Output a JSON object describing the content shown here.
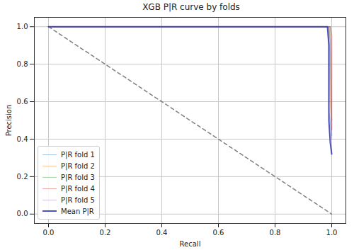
{
  "chart_data": {
    "type": "line",
    "title": "XGB P|R curve by folds",
    "x_label": "Recall",
    "y_label": "Precision",
    "xlim": [
      -0.05,
      1.05
    ],
    "ylim": [
      -0.05,
      1.05
    ],
    "xticks": [
      {
        "value": 0,
        "label": "0.0"
      },
      0.2,
      0.4,
      0.6,
      0.8,
      {
        "value": 1,
        "label": "1.0"
      }
    ],
    "yticks": [
      {
        "value": 0,
        "label": "0.0"
      },
      0.2,
      0.4,
      0.6,
      0.8,
      {
        "value": 1,
        "label": "1.0"
      }
    ],
    "grid": true,
    "legend": "lower left",
    "series": [
      {
        "color": "#808080",
        "line_style": "dashed",
        "x": [
          0,
          1
        ],
        "values": [
          1,
          0
        ]
      },
      {
        "name": "P|R fold 1",
        "color": "#1f77b4",
        "x": [
          0,
          0.99,
          0.99,
          1.0
        ],
        "values": [
          1,
          1,
          0.55,
          0.42
        ]
      },
      {
        "name": "P|R fold 2",
        "color": "#ff7f0e",
        "x": [
          0,
          0.99,
          0.995,
          1.0
        ],
        "values": [
          1,
          1,
          0.6,
          0.45
        ]
      },
      {
        "name": "P|R fold 3",
        "color": "#2ca02c",
        "x": [
          0,
          0.995,
          0.995,
          1.0
        ],
        "values": [
          1,
          1,
          0.9,
          0.5
        ]
      },
      {
        "name": "P|R fold 4",
        "color": "#d62728",
        "x": [
          0,
          0.995,
          1.0,
          1.0
        ],
        "values": [
          1,
          1,
          0.95,
          0.45
        ]
      },
      {
        "name": "P|R fold 5",
        "color": "#9467bd",
        "x": [
          0,
          0.99,
          0.995,
          1.0
        ],
        "values": [
          1,
          1,
          0.92,
          0.4
        ]
      },
      {
        "name": "Mean P|R",
        "color": "#3b3fb5",
        "x": [
          0,
          0.985,
          0.99,
          0.99,
          0.995,
          1.0
        ],
        "values": [
          1,
          1,
          0.9,
          0.5,
          0.38,
          0.32
        ]
      }
    ]
  }
}
